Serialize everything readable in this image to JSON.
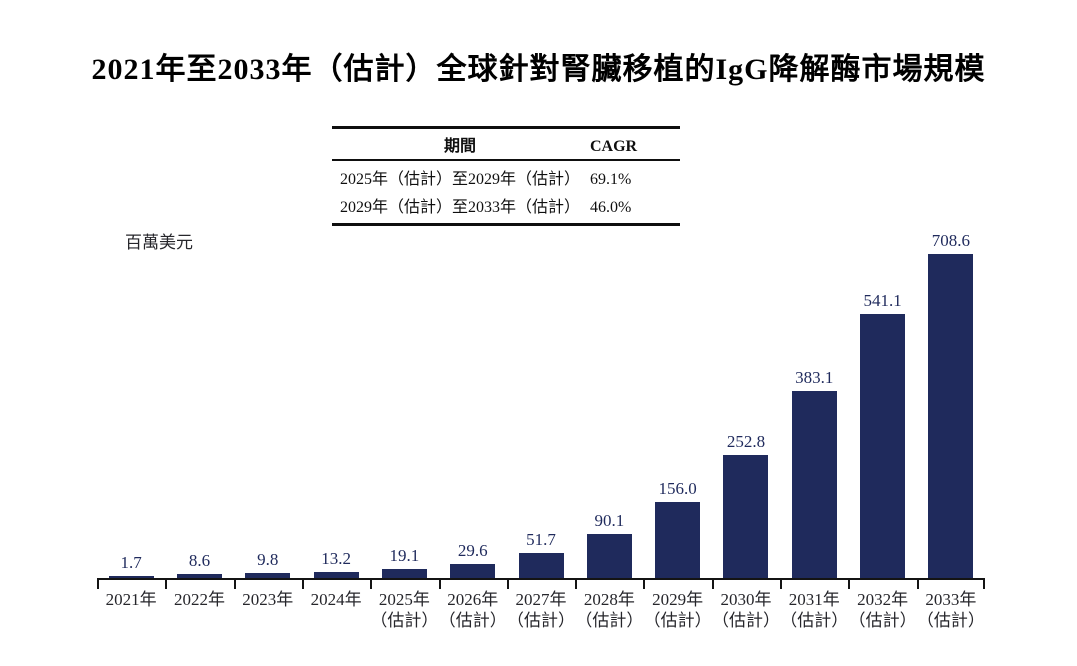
{
  "title": "2021年至2033年（估計）全球針對腎臟移植的IgG降解酶市場規模",
  "unit_label": "百萬美元",
  "cagr_table": {
    "headers": [
      "期間",
      "CAGR"
    ],
    "rows": [
      {
        "period": "2025年（估計）至2029年（估計）",
        "cagr": "69.1%"
      },
      {
        "period": "2029年（估計）至2033年（估計）",
        "cagr": "46.0%"
      }
    ]
  },
  "colors": {
    "bar": "#1f2a5c",
    "value_label": "#1f2a5c",
    "axis": "#141414"
  },
  "chart_data": {
    "type": "bar",
    "title": "2021年至2033年（估計）全球針對腎臟移植的IgG降解酶市場規模",
    "xlabel": "",
    "ylabel": "百萬美元",
    "ylim": [
      0,
      708.6
    ],
    "grid": false,
    "legend": "none",
    "categories": [
      "2021年",
      "2022年",
      "2023年",
      "2024年",
      "2025年",
      "2026年",
      "2027年",
      "2028年",
      "2029年",
      "2030年",
      "2031年",
      "2032年",
      "2033年"
    ],
    "category_sublabels": [
      "",
      "",
      "",
      "",
      "（估計）",
      "（估計）",
      "（估計）",
      "（估計）",
      "（估計）",
      "（估計）",
      "（估計）",
      "（估計）",
      "（估計）"
    ],
    "values": [
      1.7,
      8.6,
      9.8,
      13.2,
      19.1,
      29.6,
      51.7,
      90.1,
      156.0,
      252.8,
      383.1,
      541.1,
      708.6
    ],
    "value_labels": [
      "1.7",
      "8.6",
      "9.8",
      "13.2",
      "19.1",
      "29.6",
      "51.7",
      "90.1",
      "156.0",
      "252.8",
      "383.1",
      "541.1",
      "708.6"
    ]
  }
}
